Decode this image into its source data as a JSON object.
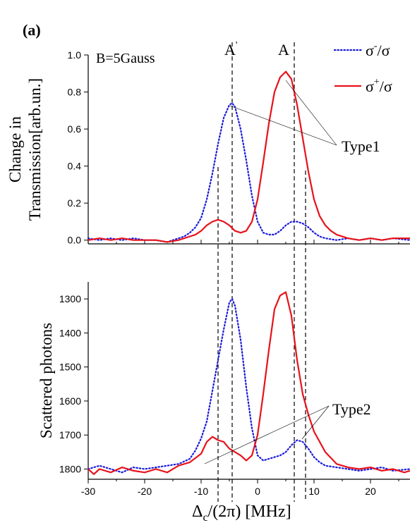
{
  "panel_label": "(a)",
  "field_label": "B=5Gauss",
  "legend": {
    "dotted_label_main": "σ",
    "dotted_label_sup": "-",
    "dotted_label_tail": "/σ",
    "solid_label_main": "σ",
    "solid_label_sup": "+",
    "solid_label_tail": "/σ"
  },
  "peak_labels": {
    "a_prime": "A",
    "a_prime_mark": "'",
    "a": "A"
  },
  "annotations": {
    "type1": "Type1",
    "type2": "Type2"
  },
  "top_ylabel_line1": "Change in",
  "top_ylabel_line2": "Transmission[arb.un.]",
  "bottom_ylabel": "Scattered photons",
  "xlabel_main": "Δ",
  "xlabel_sub": "c",
  "xlabel_tail": "/(2π) [MHz]",
  "colors": {
    "dotted": "#1a1adb",
    "solid": "#e8121a",
    "axis": "#000000"
  },
  "chart_data": [
    {
      "type": "line",
      "panel": "top",
      "xlim": [
        -30,
        27
      ],
      "ylim": [
        -0.02,
        1.0
      ],
      "yticks": [
        0.0,
        0.2,
        0.4,
        0.6,
        0.8,
        1.0
      ],
      "ytick_labels": [
        "0.0",
        "0.2",
        "0.4",
        "0.6",
        "0.8",
        "1.0"
      ],
      "vlines": [
        -7,
        -4.5,
        6.5,
        8.5
      ],
      "series": [
        {
          "style": "dotted",
          "x": [
            -30,
            -28,
            -26,
            -24,
            -22,
            -20,
            -18,
            -16,
            -14,
            -13,
            -12,
            -11,
            -10,
            -9,
            -8,
            -7,
            -6,
            -5,
            -4.5,
            -4,
            -3,
            -2,
            -1,
            0,
            1,
            2,
            3,
            4,
            5,
            6,
            7,
            8,
            9,
            10,
            11,
            12,
            14,
            16,
            18,
            20,
            22,
            24,
            27
          ],
          "y": [
            0.01,
            0.0,
            0.01,
            0.0,
            0.01,
            0.0,
            0.0,
            -0.01,
            0.01,
            0.02,
            0.04,
            0.07,
            0.12,
            0.22,
            0.36,
            0.52,
            0.66,
            0.73,
            0.74,
            0.72,
            0.6,
            0.43,
            0.24,
            0.1,
            0.04,
            0.03,
            0.03,
            0.05,
            0.08,
            0.1,
            0.1,
            0.09,
            0.07,
            0.04,
            0.02,
            0.01,
            0.0,
            0.01,
            0.0,
            0.01,
            0.0,
            0.01,
            0.0
          ]
        },
        {
          "style": "solid",
          "x": [
            -30,
            -28,
            -26,
            -24,
            -22,
            -20,
            -18,
            -16,
            -14,
            -12,
            -11,
            -10,
            -9,
            -8,
            -7,
            -6,
            -5,
            -4,
            -3,
            -2,
            -1,
            0,
            1,
            2,
            3,
            4,
            5,
            6,
            7,
            8,
            9,
            10,
            11,
            12,
            13,
            14,
            16,
            18,
            20,
            22,
            24,
            27
          ],
          "y": [
            0.0,
            0.01,
            0.0,
            0.01,
            0.0,
            0.0,
            0.0,
            -0.01,
            0.0,
            0.02,
            0.03,
            0.05,
            0.08,
            0.1,
            0.11,
            0.1,
            0.08,
            0.05,
            0.04,
            0.05,
            0.1,
            0.22,
            0.42,
            0.63,
            0.8,
            0.88,
            0.91,
            0.87,
            0.73,
            0.55,
            0.37,
            0.22,
            0.13,
            0.08,
            0.05,
            0.03,
            0.01,
            0.0,
            0.01,
            0.0,
            0.01,
            0.01
          ]
        }
      ]
    },
    {
      "type": "line",
      "panel": "bottom",
      "xlim": [
        -30,
        27
      ],
      "ylim": [
        1830,
        1250
      ],
      "y_inverted": true,
      "yticks": [
        1300,
        1400,
        1500,
        1600,
        1700,
        1800
      ],
      "ytick_labels": [
        "1300",
        "1400",
        "1500",
        "1600",
        "1700",
        "1800"
      ],
      "xticks": [
        -30,
        -20,
        -10,
        0,
        10,
        20
      ],
      "xtick_labels": [
        "-30",
        "-20",
        "-10",
        "0",
        "10",
        "20"
      ],
      "vlines": [
        -7,
        -4.5,
        6.5,
        8.5
      ],
      "series": [
        {
          "style": "dotted",
          "x": [
            -30,
            -28,
            -26,
            -24,
            -22,
            -20,
            -18,
            -16,
            -14,
            -12,
            -11,
            -10,
            -9,
            -8,
            -7,
            -6,
            -5,
            -4.5,
            -4,
            -3,
            -2,
            -1,
            0,
            1,
            2,
            3,
            4,
            5,
            6,
            7,
            8,
            9,
            10,
            11,
            12,
            14,
            16,
            18,
            20,
            22,
            24,
            27
          ],
          "y": [
            1800,
            1790,
            1800,
            1810,
            1795,
            1800,
            1795,
            1790,
            1785,
            1770,
            1745,
            1710,
            1660,
            1570,
            1480,
            1390,
            1310,
            1300,
            1320,
            1420,
            1560,
            1680,
            1760,
            1775,
            1770,
            1765,
            1760,
            1750,
            1730,
            1715,
            1720,
            1740,
            1765,
            1780,
            1790,
            1795,
            1800,
            1805,
            1800,
            1795,
            1805,
            1800
          ]
        },
        {
          "style": "solid",
          "x": [
            -30,
            -29,
            -28,
            -26,
            -24,
            -22,
            -20,
            -18,
            -16,
            -14,
            -12,
            -10,
            -9,
            -8,
            -7,
            -6,
            -5,
            -4,
            -3,
            -2,
            -1,
            0,
            1,
            2,
            3,
            4,
            5,
            6,
            7,
            8,
            9,
            10,
            11,
            12,
            14,
            16,
            18,
            20,
            22,
            24,
            26,
            27
          ],
          "y": [
            1800,
            1815,
            1800,
            1810,
            1795,
            1805,
            1810,
            1800,
            1810,
            1790,
            1780,
            1755,
            1720,
            1705,
            1715,
            1720,
            1740,
            1750,
            1760,
            1775,
            1760,
            1700,
            1580,
            1450,
            1330,
            1290,
            1280,
            1350,
            1480,
            1580,
            1640,
            1690,
            1720,
            1750,
            1785,
            1795,
            1800,
            1795,
            1805,
            1800,
            1810,
            1805
          ]
        }
      ]
    }
  ]
}
